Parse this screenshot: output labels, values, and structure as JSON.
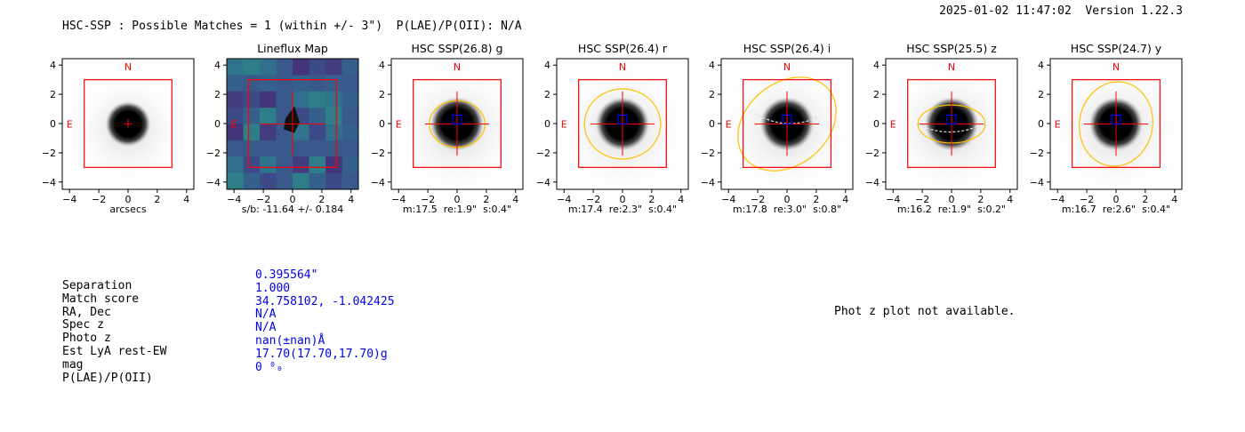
{
  "header": {
    "left_text": "HSC-SSP : Possible Matches = 1 (within +/- 3\")  P(LAE)/P(OII): N/A",
    "right_text": "2025-01-02 11:47:02  Version 1.22.3"
  },
  "chart_data": {
    "type": "image-cutouts",
    "axes_range": [
      -4.5,
      4.5
    ],
    "ticks": [
      -4,
      -2,
      0,
      2,
      4
    ],
    "x_axis_label": "arcsecs",
    "box_half_width_arcsec": 3,
    "panels": [
      {
        "title": "",
        "kind": "stack",
        "compass_n": "N",
        "compass_e": "E",
        "stats": "arcsecs",
        "aperture": null
      },
      {
        "title": "Lineflux Map",
        "kind": "lineflux",
        "compass_n": "",
        "compass_e": "E",
        "stats": "s/b: -11.64 +/- 0.184",
        "aperture": null
      },
      {
        "title": "HSC SSP(26.8) g",
        "kind": "band",
        "compass_n": "N",
        "compass_e": "E",
        "stats": "m:17.5  re:1.9\"  s:0.4\"",
        "aperture": {
          "semi_major": 1.9,
          "semi_minor": 1.6,
          "angle_deg": 0
        }
      },
      {
        "title": "HSC SSP(26.4) r",
        "kind": "band",
        "compass_n": "N",
        "compass_e": "E",
        "stats": "m:17.4  re:2.3\"  s:0.4\"",
        "aperture": {
          "semi_major": 2.6,
          "semi_minor": 2.4,
          "angle_deg": 0
        }
      },
      {
        "title": "HSC SSP(26.4) i",
        "kind": "band",
        "compass_n": "N",
        "compass_e": "E",
        "stats": "m:17.8  re:3.0\"  s:0.8\"",
        "aperture": {
          "semi_major": 3.7,
          "semi_minor": 2.8,
          "angle_deg": 40
        }
      },
      {
        "title": "HSC SSP(25.5) z",
        "kind": "band",
        "compass_n": "N",
        "compass_e": "E",
        "stats": "m:16.2  re:1.9\"  s:0.2\"",
        "aperture": {
          "semi_major": 2.3,
          "semi_minor": 1.3,
          "angle_deg": 0
        }
      },
      {
        "title": "HSC SSP(24.7) y",
        "kind": "band",
        "compass_n": "N",
        "compass_e": "E",
        "stats": "m:16.7  re:2.6\"  s:0.4\"",
        "aperture": {
          "semi_major": 2.9,
          "semi_minor": 2.5,
          "angle_deg": 80
        }
      }
    ]
  },
  "match_table": {
    "rows": [
      {
        "label": "Separation",
        "value": "0.395564\""
      },
      {
        "label": "Match score",
        "value": "1.000"
      },
      {
        "label": "RA, Dec",
        "value": "34.758102, -1.042425"
      },
      {
        "label": "Spec z",
        "value": "N/A"
      },
      {
        "label": "Photo z",
        "value": "N/A"
      },
      {
        "label": "Est LyA rest-EW",
        "value": "nan(±nan)Å"
      },
      {
        "label": "mag",
        "value": "17.70(17.70,17.70)g"
      },
      {
        "label": "P(LAE)/P(OII)",
        "value": "0 ⁰₀"
      }
    ]
  },
  "phot_z_message": "Phot z plot not available.",
  "colors": {
    "box": "#ff0000",
    "aperture": "#ffc000",
    "center_box": "#0000ff",
    "value_text": "#0000ee"
  }
}
